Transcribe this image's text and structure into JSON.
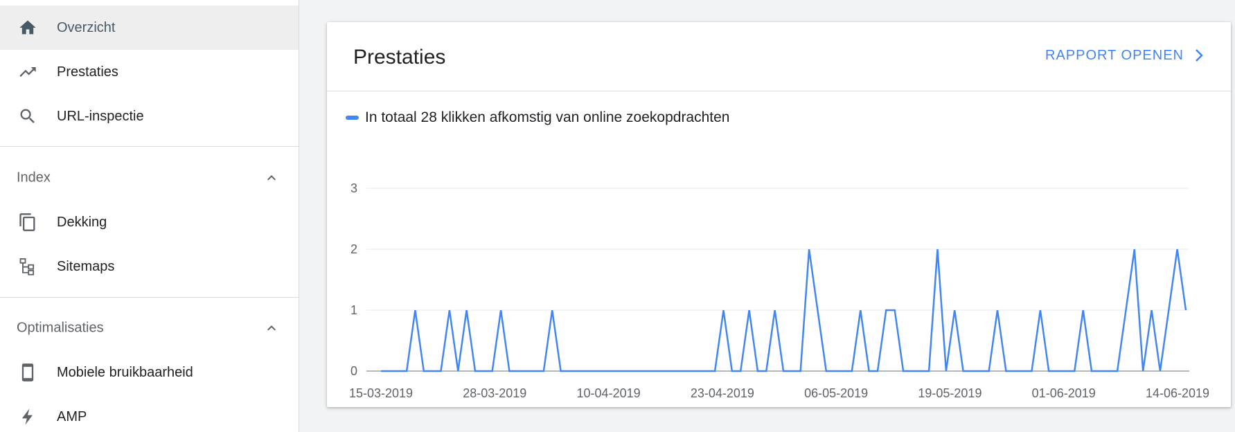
{
  "sidebar": {
    "items_top": [
      {
        "label": "Overzicht",
        "icon": "home-icon",
        "active": true
      },
      {
        "label": "Prestaties",
        "icon": "trending-up-icon",
        "active": false
      },
      {
        "label": "URL-inspectie",
        "icon": "search-icon",
        "active": false
      }
    ],
    "sections": [
      {
        "title": "Index",
        "expanded": true,
        "items": [
          {
            "label": "Dekking",
            "icon": "copy-pages-icon"
          },
          {
            "label": "Sitemaps",
            "icon": "sitemap-tree-icon"
          }
        ]
      },
      {
        "title": "Optimalisaties",
        "expanded": true,
        "items": [
          {
            "label": "Mobiele bruikbaarheid",
            "icon": "smartphone-icon"
          },
          {
            "label": "AMP",
            "icon": "bolt-icon"
          }
        ]
      }
    ]
  },
  "card": {
    "title": "Prestaties",
    "open_report_label": "RAPPORT OPENEN",
    "legend_label": "In totaal 28 klikken afkomstig van online zoekopdrachten"
  },
  "colors": {
    "accent": "#4285f4",
    "active_bg": "#eeeeee",
    "active_text": "#455a64",
    "icon": "#5f6368"
  },
  "chart_data": {
    "type": "line",
    "title": "",
    "xlabel": "",
    "ylabel": "",
    "ylim": [
      0,
      3
    ],
    "yticks": [
      0,
      1,
      2,
      3
    ],
    "x_tick_labels": [
      "15-03-2019",
      "28-03-2019",
      "10-04-2019",
      "23-04-2019",
      "06-05-2019",
      "19-05-2019",
      "01-06-2019",
      "14-06-2019"
    ],
    "x_start": "15-03-2019",
    "x_end": "14-06-2019",
    "grid": true,
    "series": [
      {
        "name": "",
        "color": "#4285f4",
        "values": [
          0,
          0,
          0,
          0,
          1,
          0,
          0,
          0,
          1,
          0,
          1,
          0,
          0,
          0,
          1,
          0,
          0,
          0,
          0,
          0,
          1,
          0,
          0,
          0,
          0,
          0,
          0,
          0,
          0,
          0,
          0,
          0,
          0,
          0,
          0,
          0,
          0,
          0,
          0,
          0,
          1,
          0,
          0,
          1,
          0,
          0,
          1,
          0,
          0,
          0,
          2,
          1,
          0,
          0,
          0,
          0,
          1,
          0,
          0,
          1,
          1,
          0,
          0,
          0,
          0,
          2,
          0,
          1,
          0,
          0,
          0,
          0,
          1,
          0,
          0,
          0,
          0,
          1,
          0,
          0,
          0,
          0,
          1,
          0,
          0,
          0,
          0,
          1,
          2,
          0,
          1,
          0,
          1,
          2,
          1
        ]
      }
    ]
  }
}
